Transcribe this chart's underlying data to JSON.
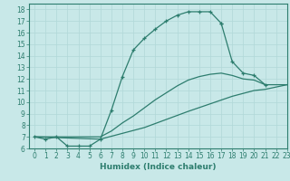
{
  "xlabel": "Humidex (Indice chaleur)",
  "xlim": [
    -0.5,
    23
  ],
  "ylim": [
    6,
    18.5
  ],
  "xticks": [
    0,
    1,
    2,
    3,
    4,
    5,
    6,
    7,
    8,
    9,
    10,
    11,
    12,
    13,
    14,
    15,
    16,
    17,
    18,
    19,
    20,
    21,
    22,
    23
  ],
  "yticks": [
    6,
    7,
    8,
    9,
    10,
    11,
    12,
    13,
    14,
    15,
    16,
    17,
    18
  ],
  "line_color": "#2d7d6e",
  "bg_color": "#c8e8e8",
  "grid_color": "#b0d8d8",
  "marker_color": "#2d7d6e",
  "line1_x": [
    0,
    1,
    2,
    3,
    4,
    5,
    6,
    7,
    8,
    9,
    10,
    11,
    12,
    13,
    14,
    15,
    16,
    17
  ],
  "line1_y": [
    7.0,
    6.8,
    7.0,
    6.2,
    6.2,
    6.2,
    6.8,
    9.3,
    12.2,
    14.5,
    15.5,
    16.3,
    17.0,
    17.5,
    17.8,
    17.8,
    17.8,
    16.8
  ],
  "line2_x": [
    17,
    18,
    19,
    20,
    21
  ],
  "line2_y": [
    16.8,
    13.5,
    12.5,
    12.3,
    11.5
  ],
  "line3_x": [
    0,
    6,
    7,
    8,
    9,
    10,
    11,
    12,
    13,
    14,
    15,
    16,
    17,
    18,
    19,
    20,
    21,
    22,
    23
  ],
  "line3_y": [
    7.0,
    7.0,
    7.5,
    8.2,
    8.8,
    9.5,
    10.2,
    10.8,
    11.4,
    11.9,
    12.2,
    12.4,
    12.5,
    12.3,
    12.0,
    11.9,
    11.5,
    11.5,
    11.5
  ],
  "line4_x": [
    0,
    6,
    10,
    14,
    18,
    20,
    21,
    22,
    23
  ],
  "line4_y": [
    7.0,
    6.8,
    7.8,
    9.2,
    10.5,
    11.0,
    11.1,
    11.3,
    11.5
  ],
  "tick_fontsize": 5.5,
  "xlabel_fontsize": 6.5
}
